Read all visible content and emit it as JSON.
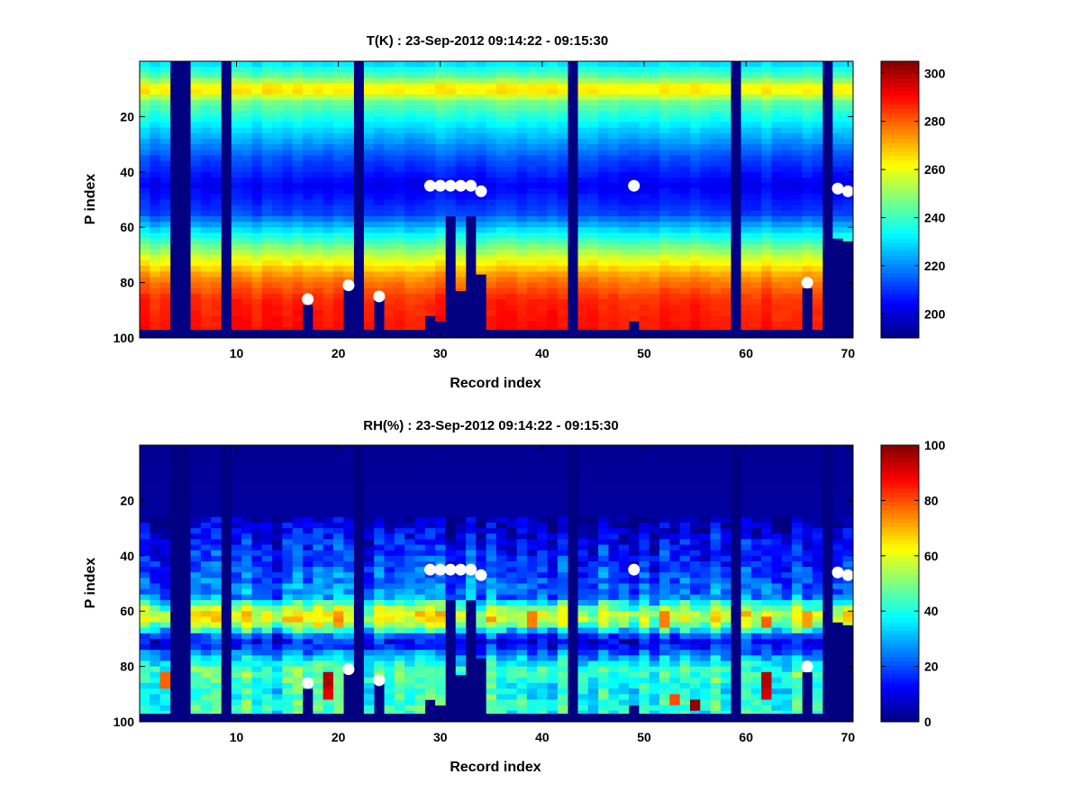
{
  "figure": {
    "background": "#ffffff",
    "colormap": "jet"
  },
  "chart_data": [
    {
      "type": "heatmap",
      "title": "T(K) : 23-Sep-2012 09:14:22 - 09:15:30",
      "xlabel": "Record index",
      "ylabel": "P index",
      "xlim": [
        0.5,
        70.5
      ],
      "ylim": [
        100,
        0
      ],
      "x_ticks": [
        10,
        20,
        30,
        40,
        50,
        60,
        70
      ],
      "x_tick_labels": [
        "10",
        "20",
        "30",
        "40",
        "50",
        "60",
        "70"
      ],
      "y_ticks": [
        20,
        40,
        60,
        80,
        100
      ],
      "y_tick_labels": [
        "20",
        "40",
        "60",
        "80",
        "100"
      ],
      "colorbar": {
        "range": [
          190,
          305
        ],
        "ticks": [
          200,
          220,
          240,
          260,
          280,
          300
        ],
        "tick_labels": [
          "200",
          "220",
          "240",
          "260",
          "280",
          "300"
        ]
      },
      "profile": {
        "p_index": [
          0,
          6,
          10,
          15,
          25,
          35,
          45,
          55,
          62,
          70,
          78,
          86,
          100
        ],
        "value": [
          228,
          245,
          268,
          245,
          228,
          213,
          203,
          212,
          232,
          255,
          275,
          286,
          290
        ]
      },
      "empty_records": [
        4,
        5,
        9,
        22,
        43,
        59,
        68
      ],
      "missing_below_p": [
        {
          "record": 17,
          "p": 88
        },
        {
          "record": 21,
          "p": 82
        },
        {
          "record": 24,
          "p": 86
        },
        {
          "record": 29,
          "p": 92
        },
        {
          "record": 30,
          "p": 94
        },
        {
          "record": 31,
          "p": 56
        },
        {
          "record": 32,
          "p": 83
        },
        {
          "record": 33,
          "p": 56
        },
        {
          "record": 34,
          "p": 77
        },
        {
          "record": 49,
          "p": 94
        },
        {
          "record": 66,
          "p": 82
        },
        {
          "record": 69,
          "p": 64
        },
        {
          "record": 70,
          "p": 65
        }
      ],
      "markers": [
        {
          "record": 17,
          "p": 86
        },
        {
          "record": 21,
          "p": 81
        },
        {
          "record": 24,
          "p": 85
        },
        {
          "record": 29,
          "p": 45
        },
        {
          "record": 30,
          "p": 45
        },
        {
          "record": 31,
          "p": 45
        },
        {
          "record": 32,
          "p": 45
        },
        {
          "record": 33,
          "p": 45
        },
        {
          "record": 34,
          "p": 47
        },
        {
          "record": 49,
          "p": 45
        },
        {
          "record": 66,
          "p": 80
        },
        {
          "record": 69,
          "p": 46
        },
        {
          "record": 70,
          "p": 47
        }
      ]
    },
    {
      "type": "heatmap",
      "title": "RH(%) : 23-Sep-2012 09:14:22 - 09:15:30",
      "xlabel": "Record index",
      "ylabel": "P index",
      "xlim": [
        0.5,
        70.5
      ],
      "ylim": [
        100,
        0
      ],
      "x_ticks": [
        10,
        20,
        30,
        40,
        50,
        60,
        70
      ],
      "x_tick_labels": [
        "10",
        "20",
        "30",
        "40",
        "50",
        "60",
        "70"
      ],
      "y_ticks": [
        20,
        40,
        60,
        80,
        100
      ],
      "y_tick_labels": [
        "20",
        "40",
        "60",
        "80",
        "100"
      ],
      "colorbar": {
        "range": [
          0,
          100
        ],
        "ticks": [
          0,
          20,
          40,
          60,
          80,
          100
        ],
        "tick_labels": [
          "0",
          "20",
          "40",
          "60",
          "80",
          "100"
        ]
      },
      "profile": {
        "p_index": [
          0,
          25,
          35,
          45,
          55,
          58,
          62,
          66,
          70,
          73,
          78,
          82,
          88,
          95,
          100
        ],
        "value": [
          2,
          3,
          12,
          18,
          25,
          45,
          62,
          45,
          10,
          15,
          35,
          45,
          38,
          42,
          40
        ]
      },
      "empty_records": [
        4,
        5,
        9,
        22,
        43,
        59,
        68
      ],
      "missing_below_p": [
        {
          "record": 17,
          "p": 88
        },
        {
          "record": 21,
          "p": 82
        },
        {
          "record": 24,
          "p": 86
        },
        {
          "record": 29,
          "p": 92
        },
        {
          "record": 30,
          "p": 94
        },
        {
          "record": 31,
          "p": 56
        },
        {
          "record": 32,
          "p": 83
        },
        {
          "record": 33,
          "p": 56
        },
        {
          "record": 34,
          "p": 77
        },
        {
          "record": 49,
          "p": 94
        },
        {
          "record": 66,
          "p": 82
        },
        {
          "record": 69,
          "p": 64
        },
        {
          "record": 70,
          "p": 65
        }
      ],
      "hotspots": [
        {
          "record": 3,
          "p": 85,
          "value": 78
        },
        {
          "record": 19,
          "p": 85,
          "value": 95
        },
        {
          "record": 19,
          "p": 89,
          "value": 90
        },
        {
          "record": 20,
          "p": 63,
          "value": 72
        },
        {
          "record": 39,
          "p": 63,
          "value": 75
        },
        {
          "record": 52,
          "p": 63,
          "value": 75
        },
        {
          "record": 53,
          "p": 92,
          "value": 80
        },
        {
          "record": 55,
          "p": 94,
          "value": 98
        },
        {
          "record": 62,
          "p": 85,
          "value": 95
        },
        {
          "record": 62,
          "p": 89,
          "value": 92
        },
        {
          "record": 62,
          "p": 64,
          "value": 78
        },
        {
          "record": 66,
          "p": 63,
          "value": 72
        }
      ],
      "markers": [
        {
          "record": 17,
          "p": 86
        },
        {
          "record": 21,
          "p": 81
        },
        {
          "record": 24,
          "p": 85
        },
        {
          "record": 29,
          "p": 45
        },
        {
          "record": 30,
          "p": 45
        },
        {
          "record": 31,
          "p": 45
        },
        {
          "record": 32,
          "p": 45
        },
        {
          "record": 33,
          "p": 45
        },
        {
          "record": 34,
          "p": 47
        },
        {
          "record": 49,
          "p": 45
        },
        {
          "record": 66,
          "p": 80
        },
        {
          "record": 69,
          "p": 46
        },
        {
          "record": 70,
          "p": 47
        }
      ]
    }
  ]
}
